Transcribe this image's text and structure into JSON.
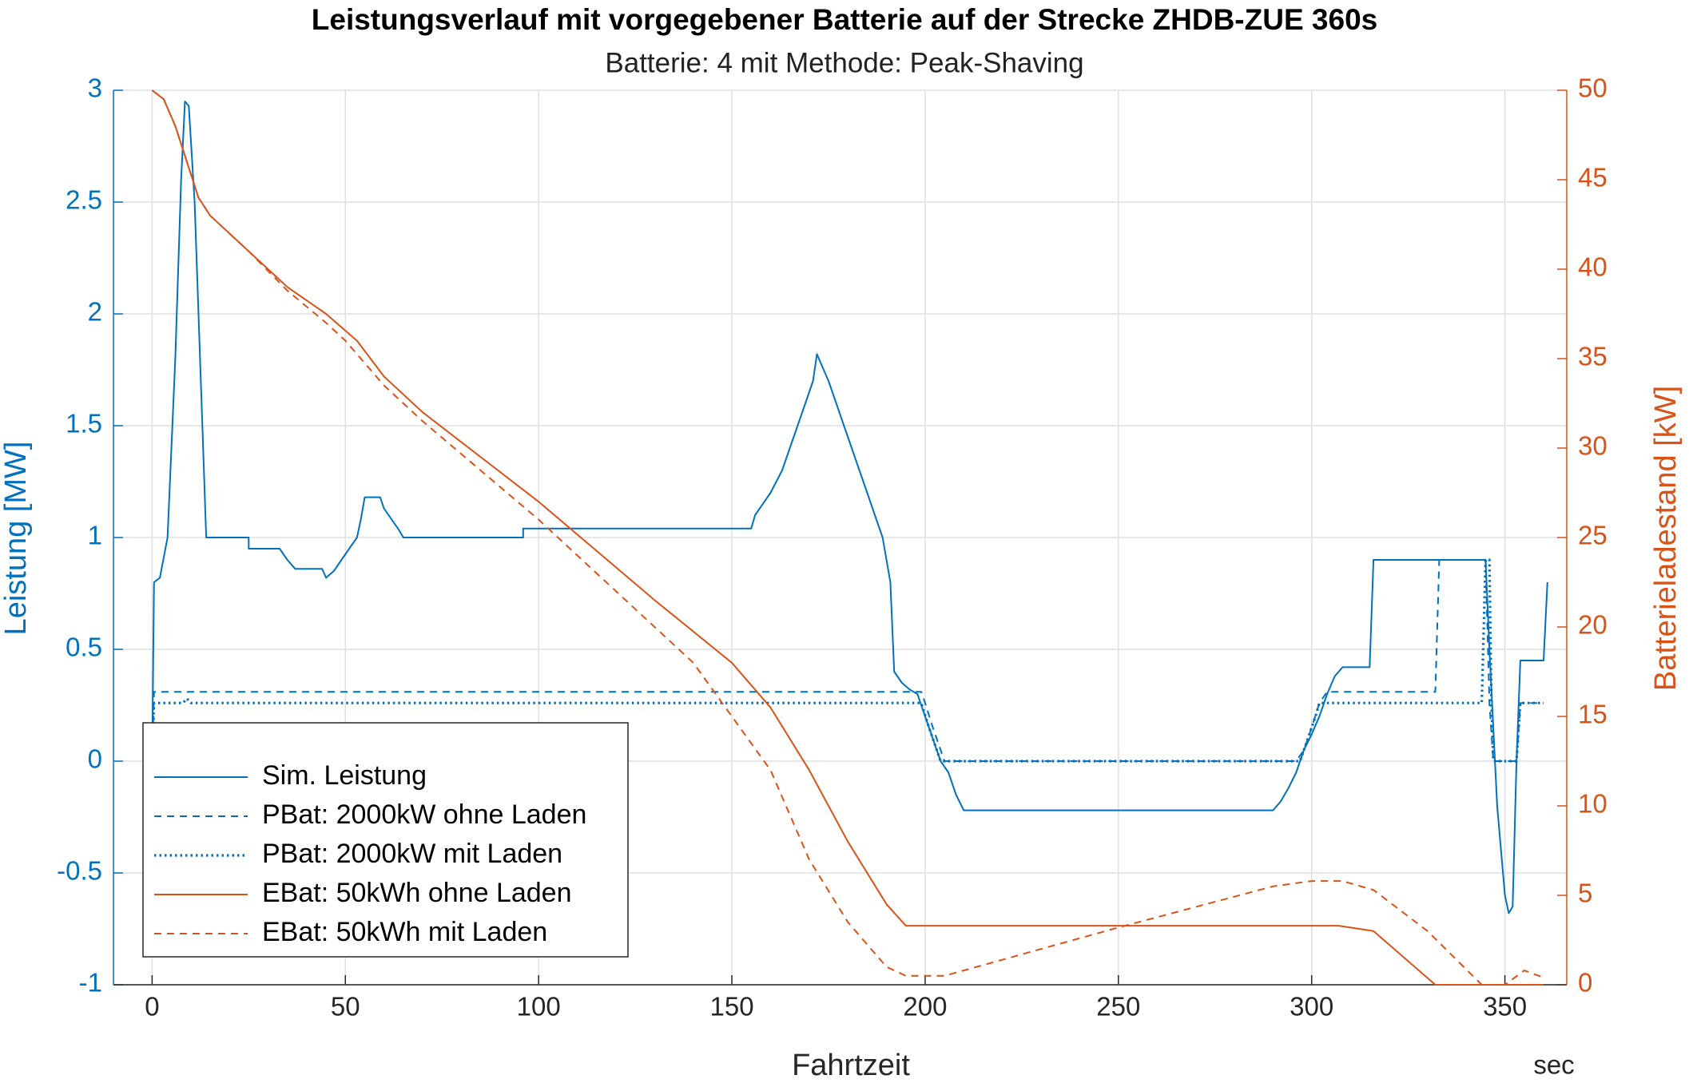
{
  "chart_data": {
    "type": "line",
    "title": "Leistungsverlauf mit vorgegebener Batterie auf der Strecke ZHDB-ZUE 360s",
    "subtitle": "Batterie: 4 mit Methode: Peak-Shaving",
    "xlabel": "Fahrtzeit",
    "x_unit": "sec",
    "ylabel": "Leistung [MW]",
    "y2label": "Batterieladestand [kW]",
    "xlim": [
      -10,
      366
    ],
    "xticks": [
      0,
      50,
      100,
      150,
      200,
      250,
      300,
      350
    ],
    "ylim": [
      -1,
      3
    ],
    "yticks": [
      -1,
      -0.5,
      0,
      0.5,
      1,
      1.5,
      2,
      2.5,
      3
    ],
    "y2lim": [
      0,
      50
    ],
    "y2ticks": [
      0,
      5,
      10,
      15,
      20,
      25,
      30,
      35,
      40,
      45,
      50
    ],
    "grid": true,
    "legend": "lower left",
    "series": [
      {
        "name": "Sim. Leistung",
        "color": "#0072bd",
        "style": "solid",
        "x": [
          0,
          0.5,
          2,
          4,
          6,
          7.5,
          8.5,
          9.5,
          11,
          13,
          14,
          25,
          25,
          33,
          35,
          37,
          44,
          45,
          47,
          49,
          51,
          53,
          54,
          55,
          59,
          60,
          62,
          64,
          65,
          96,
          96,
          155,
          156,
          160,
          163,
          165,
          167,
          169,
          171,
          172,
          173,
          175,
          177,
          179,
          181,
          183,
          185,
          187,
          189,
          191,
          192,
          194,
          196,
          198,
          200,
          202,
          204,
          206,
          208,
          210,
          290,
          292,
          294,
          296,
          298,
          300,
          302,
          304,
          306,
          308,
          315,
          316,
          345,
          346,
          348,
          350,
          351,
          352,
          353,
          354,
          360,
          361
        ],
        "values": [
          0,
          0.8,
          0.82,
          1.0,
          1.8,
          2.6,
          2.95,
          2.93,
          2.5,
          1.5,
          1.0,
          1.0,
          0.95,
          0.95,
          0.9,
          0.86,
          0.86,
          0.82,
          0.85,
          0.9,
          0.95,
          1.0,
          1.08,
          1.18,
          1.18,
          1.13,
          1.08,
          1.03,
          1.0,
          1.0,
          1.04,
          1.04,
          1.1,
          1.2,
          1.3,
          1.4,
          1.5,
          1.6,
          1.7,
          1.82,
          1.78,
          1.7,
          1.6,
          1.5,
          1.4,
          1.3,
          1.2,
          1.1,
          1.0,
          0.8,
          0.4,
          0.35,
          0.32,
          0.3,
          0.2,
          0.1,
          0.0,
          -0.05,
          -0.15,
          -0.22,
          -0.22,
          -0.18,
          -0.12,
          -0.05,
          0.05,
          0.12,
          0.2,
          0.3,
          0.38,
          0.42,
          0.42,
          0.9,
          0.9,
          0.5,
          -0.2,
          -0.6,
          -0.68,
          -0.65,
          0.0,
          0.45,
          0.45,
          0.8
        ]
      },
      {
        "name": "PBat: 2000kW ohne Laden",
        "color": "#0072bd",
        "style": "dashed",
        "x": [
          0,
          0.5,
          199,
          200,
          202,
          204,
          205,
          296,
          298,
          300,
          302,
          304,
          332,
          333,
          345,
          346,
          347,
          353,
          354,
          360
        ],
        "values": [
          0,
          0.31,
          0.31,
          0.26,
          0.15,
          0.05,
          0.0,
          0.0,
          0.05,
          0.15,
          0.26,
          0.31,
          0.31,
          0.9,
          0.9,
          0.26,
          0.0,
          0.0,
          0.26,
          0.26
        ]
      },
      {
        "name": "PBat: 2000kW mit Laden",
        "color": "#0072bd",
        "style": "dotted",
        "x": [
          0,
          0.5,
          8,
          9,
          10,
          199,
          201,
          203,
          204,
          297,
          299,
          301,
          302,
          344,
          345,
          346,
          346.5,
          347,
          353,
          354,
          360
        ],
        "values": [
          0,
          0.26,
          0.26,
          0.28,
          0.26,
          0.26,
          0.15,
          0.05,
          0,
          0,
          0.1,
          0.2,
          0.26,
          0.26,
          0.9,
          0.9,
          0.26,
          0,
          0,
          0.26,
          0.26
        ]
      },
      {
        "name": "EBat: 50kWh ohne Laden",
        "color": "#d95319",
        "style": "solid",
        "axis": "y2",
        "x": [
          0,
          3,
          6,
          9,
          12,
          15,
          25,
          35,
          45,
          53,
          60,
          70,
          100,
          130,
          150,
          160,
          170,
          180,
          190,
          195,
          200,
          307,
          316,
          332,
          345,
          360
        ],
        "values": [
          50,
          49.5,
          48,
          46,
          44,
          43,
          41,
          39,
          37.5,
          36,
          34,
          32,
          27,
          21.5,
          18,
          15.5,
          12,
          8,
          4.5,
          3.3,
          3.3,
          3.3,
          3.0,
          0,
          0,
          0
        ]
      },
      {
        "name": "EBat: 50kWh mit Laden",
        "color": "#d95319",
        "style": "dashed",
        "axis": "y2",
        "x": [
          0,
          3,
          6,
          9,
          12,
          15,
          25,
          35,
          45,
          50,
          60,
          70,
          100,
          130,
          140,
          150,
          160,
          165,
          170,
          180,
          190,
          195,
          205,
          210,
          250,
          290,
          300,
          308,
          316,
          330,
          344,
          350,
          355,
          360
        ],
        "values": [
          50,
          49.5,
          48,
          46,
          44,
          43,
          41,
          38.8,
          37,
          36,
          33.5,
          31.5,
          26,
          20,
          18,
          15,
          12,
          9.5,
          7,
          3.5,
          1,
          0.5,
          0.5,
          0.8,
          3.2,
          5.5,
          5.8,
          5.8,
          5.3,
          3,
          0,
          0,
          0.8,
          0.4
        ]
      }
    ]
  }
}
